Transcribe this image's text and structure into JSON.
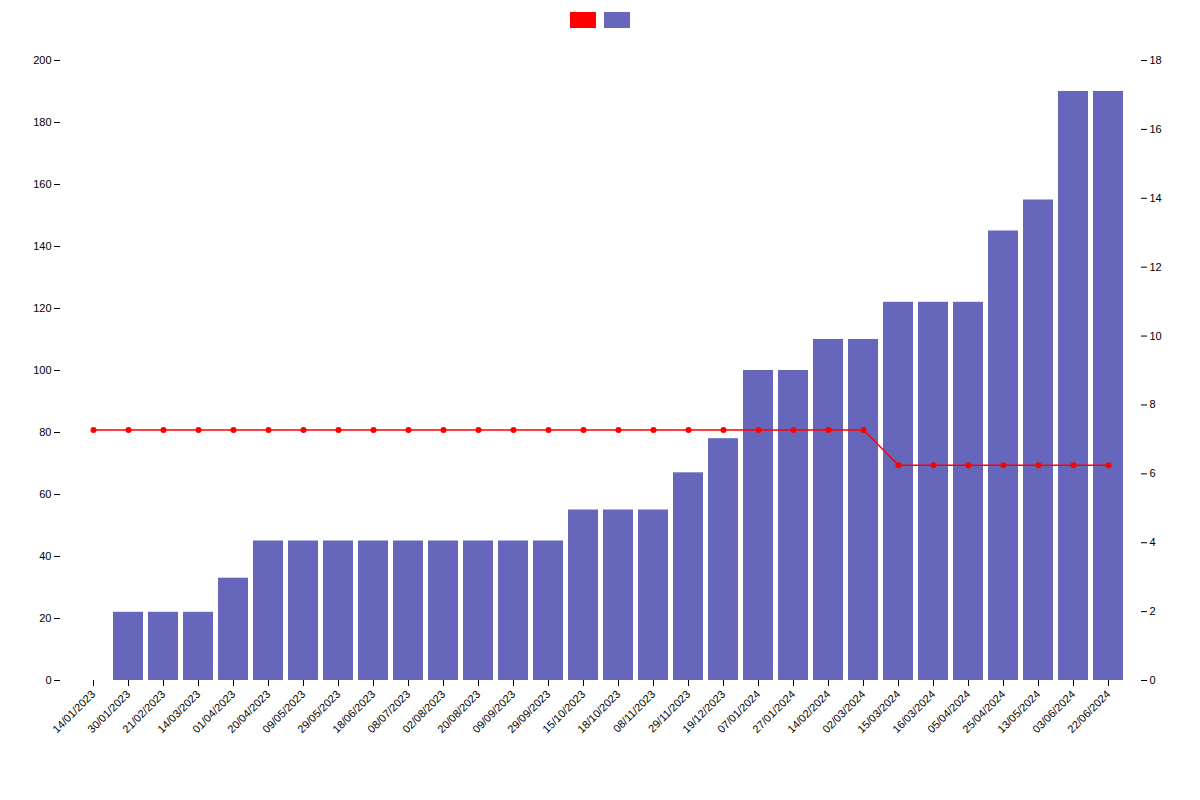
{
  "chart_data": {
    "type": "bar",
    "categories": [
      "14/01/2023",
      "30/01/2023",
      "21/02/2023",
      "14/03/2023",
      "01/04/2023",
      "20/04/2023",
      "09/05/2023",
      "29/05/2023",
      "18/06/2023",
      "08/07/2023",
      "02/08/2023",
      "20/08/2023",
      "09/09/2023",
      "29/09/2023",
      "15/10/2023",
      "18/10/2023",
      "08/11/2023",
      "29/11/2023",
      "19/12/2023",
      "07/01/2024",
      "27/01/2024",
      "14/02/2024",
      "02/03/2024",
      "15/03/2024",
      "16/03/2024",
      "05/04/2024",
      "25/04/2024",
      "13/05/2024",
      "03/06/2024",
      "22/06/2024"
    ],
    "series": [
      {
        "type": "line",
        "color": "#ff0000",
        "marker": "circle",
        "axis": "y2",
        "values": [
          7.27,
          7.27,
          7.27,
          7.27,
          7.27,
          7.27,
          7.27,
          7.27,
          7.27,
          7.27,
          7.27,
          7.27,
          7.27,
          7.27,
          7.27,
          7.27,
          7.27,
          7.27,
          7.27,
          7.27,
          7.27,
          7.27,
          7.27,
          6.25,
          6.25,
          6.25,
          6.25,
          6.25,
          6.25,
          6.25
        ]
      },
      {
        "type": "bar",
        "color": "#6666bb",
        "values": [
          0,
          22,
          22,
          22,
          33,
          45,
          45,
          45,
          45,
          45,
          45,
          45,
          45,
          45,
          55,
          55,
          55,
          67,
          78,
          100,
          100,
          110,
          110,
          122,
          122,
          122,
          145,
          155,
          190,
          190
        ]
      }
    ],
    "ylim": [
      0,
      200
    ],
    "yticks": [
      0,
      20,
      40,
      60,
      80,
      100,
      120,
      140,
      160,
      180,
      200
    ],
    "y2lim": [
      0,
      18
    ],
    "y2ticks": [
      0,
      2,
      4,
      6,
      8,
      10,
      12,
      14,
      16,
      18
    ],
    "grid": false,
    "legend": "top"
  }
}
